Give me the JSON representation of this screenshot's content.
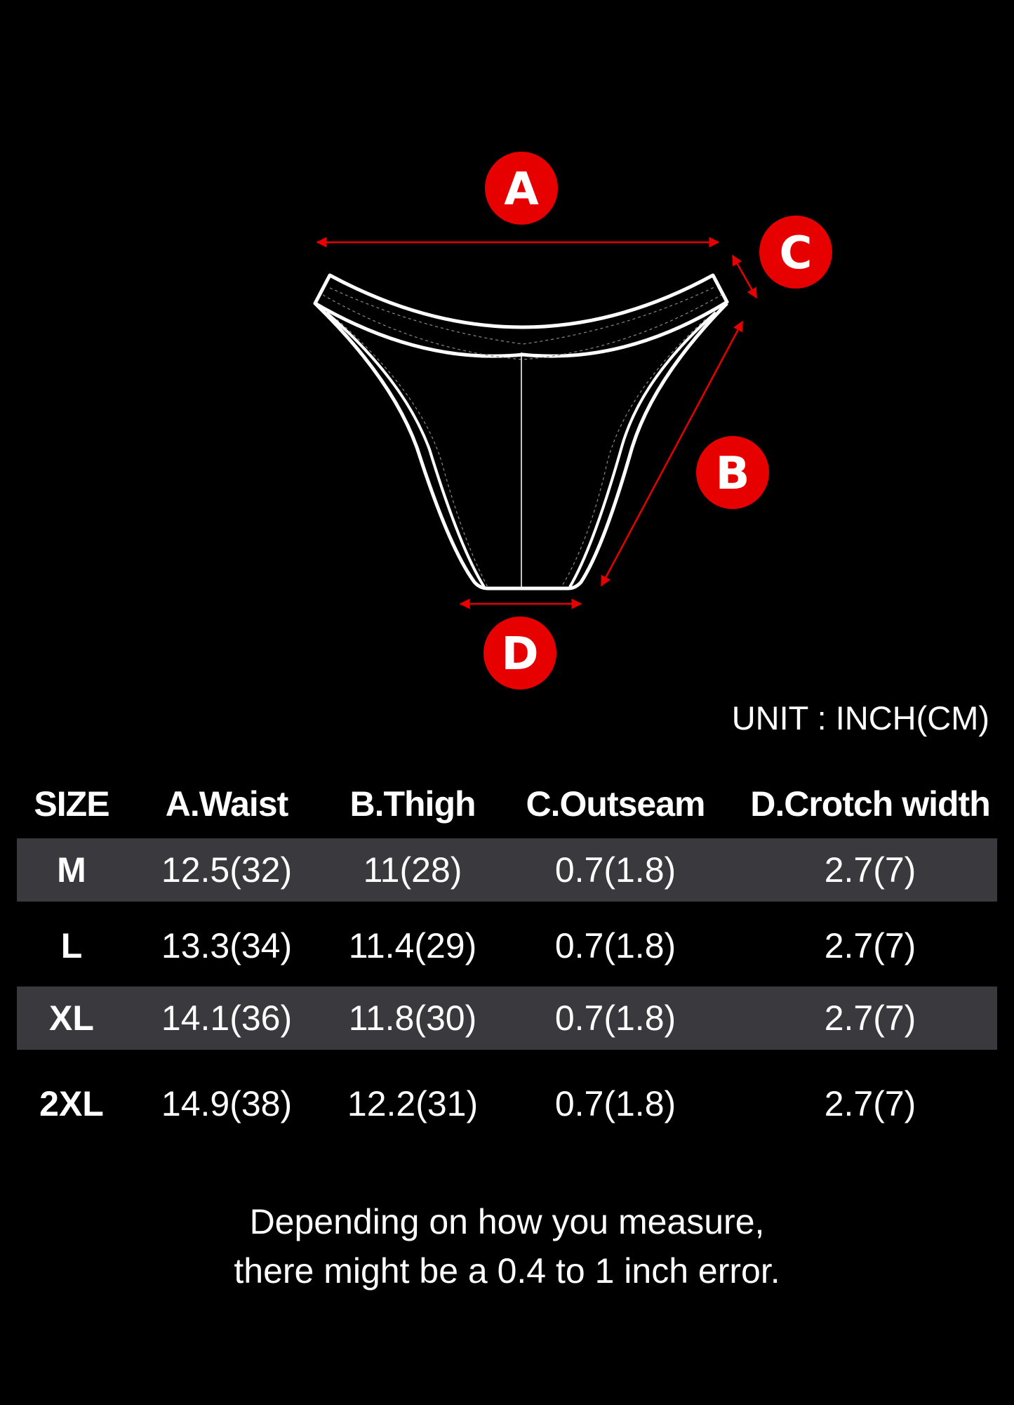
{
  "labels": {
    "a": "A",
    "b": "B",
    "c": "C",
    "d": "D"
  },
  "colors": {
    "accent": "#e60000",
    "background": "#000000",
    "row_shade": "#3a3a3e",
    "text": "#ffffff"
  },
  "unit": "UNIT : INCH(CM)",
  "table": {
    "headers": [
      "SIZE",
      "A.Waist",
      "B.Thigh",
      "C.Outseam",
      "D.Crotch width"
    ],
    "rows": [
      {
        "size": "M",
        "waist": "12.5(32)",
        "thigh": "11(28)",
        "outseam": "0.7(1.8)",
        "crotch": "2.7(7)"
      },
      {
        "size": "L",
        "waist": "13.3(34)",
        "thigh": "11.4(29)",
        "outseam": "0.7(1.8)",
        "crotch": "2.7(7)"
      },
      {
        "size": "XL",
        "waist": "14.1(36)",
        "thigh": "11.8(30)",
        "outseam": "0.7(1.8)",
        "crotch": "2.7(7)"
      },
      {
        "size": "2XL",
        "waist": "14.9(38)",
        "thigh": "12.2(31)",
        "outseam": "0.7(1.8)",
        "crotch": "2.7(7)"
      }
    ]
  },
  "footer": {
    "line1": "Depending on how you measure,",
    "line2": "there might be a 0.4 to 1 inch error."
  }
}
